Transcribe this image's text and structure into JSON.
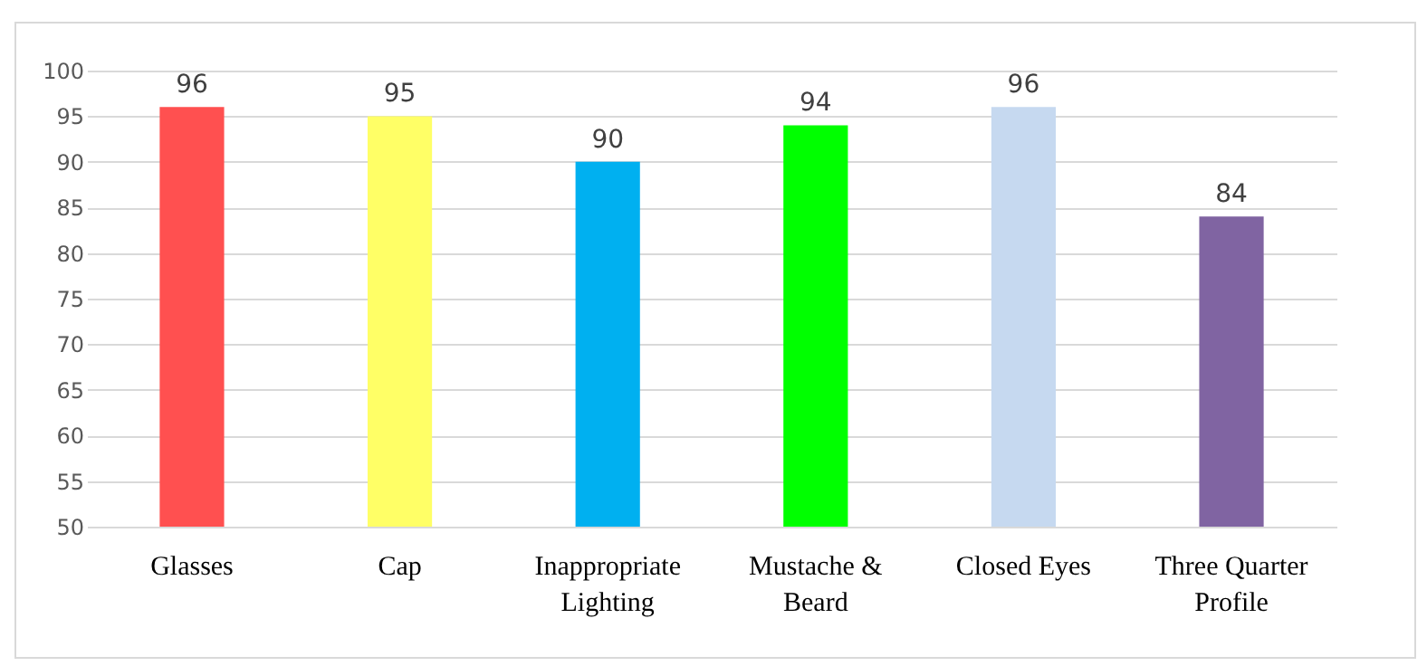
{
  "chart_data": {
    "type": "bar",
    "categories": [
      "Glasses",
      "Cap",
      "Inappropriate Lighting",
      "Mustache & Beard",
      "Closed Eyes",
      "Three Quarter Profile"
    ],
    "values": [
      96,
      95,
      90,
      94,
      96,
      84
    ],
    "colors": [
      "#ff5050",
      "#ffff66",
      "#00b0f0",
      "#00ff00",
      "#c6d9f0",
      "#8064a2"
    ],
    "ylim": [
      50,
      100
    ],
    "yticks": [
      50,
      55,
      60,
      65,
      70,
      75,
      80,
      85,
      90,
      95,
      100
    ],
    "grid": "y",
    "data_labels": true
  }
}
